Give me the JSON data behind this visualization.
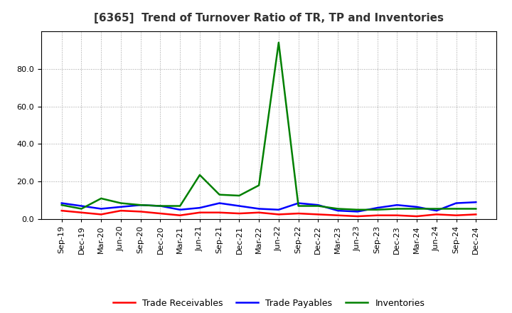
{
  "title": "[6365]  Trend of Turnover Ratio of TR, TP and Inventories",
  "x_labels": [
    "Sep-19",
    "Dec-19",
    "Mar-20",
    "Jun-20",
    "Sep-20",
    "Dec-20",
    "Mar-21",
    "Jun-21",
    "Sep-21",
    "Dec-21",
    "Mar-22",
    "Jun-22",
    "Sep-22",
    "Dec-22",
    "Mar-23",
    "Jun-23",
    "Sep-23",
    "Dec-23",
    "Mar-24",
    "Jun-24",
    "Sep-24",
    "Dec-24"
  ],
  "trade_receivables": [
    4.5,
    3.5,
    2.5,
    4.5,
    4.0,
    3.0,
    2.0,
    3.5,
    3.5,
    3.0,
    3.5,
    2.5,
    3.0,
    2.5,
    2.0,
    1.5,
    2.0,
    2.0,
    1.5,
    2.5,
    2.0,
    2.5
  ],
  "trade_payables": [
    8.5,
    7.0,
    5.5,
    6.5,
    7.5,
    7.0,
    5.0,
    6.0,
    8.5,
    7.0,
    5.5,
    5.0,
    8.5,
    7.5,
    4.5,
    4.0,
    6.0,
    7.5,
    6.5,
    4.5,
    8.5,
    9.0
  ],
  "inventories": [
    7.5,
    5.5,
    11.0,
    8.5,
    7.5,
    7.0,
    7.0,
    23.5,
    13.0,
    12.5,
    18.0,
    94.0,
    7.0,
    7.0,
    5.5,
    5.0,
    5.0,
    5.5,
    5.5,
    5.5,
    5.5,
    5.5
  ],
  "color_tr": "#ff0000",
  "color_tp": "#0000ff",
  "color_inv": "#008000",
  "ylim_min": 0,
  "ylim_max": 100,
  "yticks": [
    0.0,
    20.0,
    40.0,
    60.0,
    80.0
  ],
  "background_color": "#ffffff",
  "plot_bg_color": "#ffffff",
  "grid_color": "#888888",
  "title_fontsize": 11,
  "tick_fontsize": 8,
  "legend_labels": [
    "Trade Receivables",
    "Trade Payables",
    "Inventories"
  ],
  "line_width": 1.8
}
